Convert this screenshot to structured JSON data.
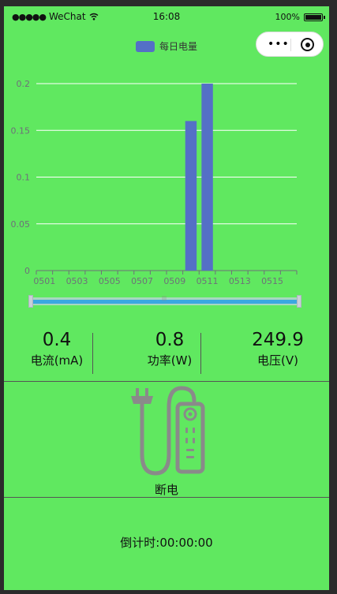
{
  "status_bar": {
    "signal": "●●●●●",
    "carrier": "WeChat",
    "time": "16:08",
    "battery": "100%"
  },
  "capsule": {
    "more_icon": "more-dots-icon",
    "close_icon": "target-close-icon"
  },
  "chart_data": {
    "type": "bar",
    "title": "",
    "legend": [
      "每日电量"
    ],
    "categories": [
      "0501",
      "0502",
      "0503",
      "0504",
      "0505",
      "0506",
      "0507",
      "0508",
      "0509",
      "0510",
      "0511",
      "0512",
      "0513",
      "0514",
      "0515",
      "0516"
    ],
    "x_tick_labels": [
      "0501",
      "0503",
      "0505",
      "0507",
      "0509",
      "0511",
      "0513",
      "0515"
    ],
    "series": [
      {
        "name": "每日电量",
        "values": [
          0,
          0,
          0,
          0,
          0,
          0,
          0,
          0,
          0,
          0.16,
          0.2,
          0,
          0,
          0,
          0,
          0
        ]
      }
    ],
    "ylim": [
      0,
      0.2
    ],
    "y_ticks": [
      0,
      0.05,
      0.1,
      0.15,
      0.2
    ],
    "y_tick_labels": [
      "0",
      "0.05",
      "0.1",
      "0.15",
      "0.2"
    ],
    "grid": true,
    "bar_color": "#5470c6",
    "datazoom": {
      "start": 0,
      "end": 100
    }
  },
  "readings": {
    "current": {
      "value": "0.4",
      "label": "电流(mA)"
    },
    "power": {
      "value": "0.8",
      "label": "功率(W)"
    },
    "voltage": {
      "value": "249.9",
      "label": "电压(V)"
    }
  },
  "device": {
    "icon": "power-strip-plug-icon",
    "status": "断电"
  },
  "countdown": {
    "text": "倒计时:00:00:00"
  },
  "colors": {
    "background": "#60e860",
    "bar": "#5470c6",
    "icon": "#8a8a8a"
  }
}
